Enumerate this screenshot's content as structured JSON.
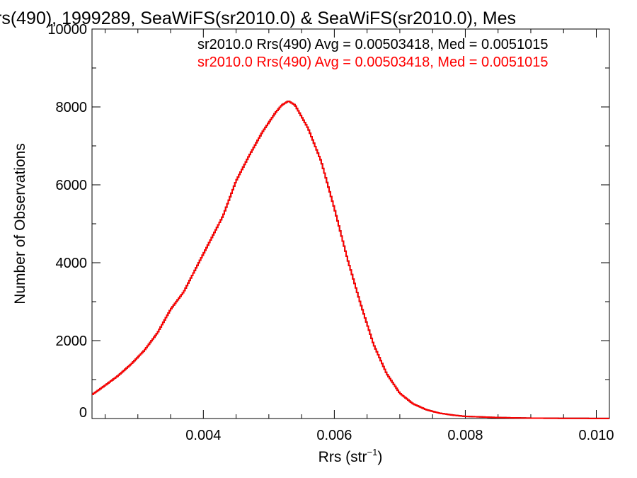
{
  "chart_data": {
    "type": "line",
    "title": "rs(490), 1999289, SeaWiFS(sr2010.0) & SeaWiFS(sr2010.0), Mes",
    "xlabel": "Rrs (str",
    "xlabel_sup": "−1",
    "xlabel_close": ")",
    "ylabel": "Number of Observations",
    "xlim": [
      0.0023,
      0.0102
    ],
    "ylim": [
      0,
      10000
    ],
    "x_ticks": [
      {
        "value": 0.004,
        "label": "0.004"
      },
      {
        "value": 0.006,
        "label": "0.006"
      },
      {
        "value": 0.008,
        "label": "0.008"
      },
      {
        "value": 0.01,
        "label": "0.010"
      }
    ],
    "y_ticks": [
      {
        "value": 0,
        "label": "0"
      },
      {
        "value": 2000,
        "label": "2000"
      },
      {
        "value": 4000,
        "label": "4000"
      },
      {
        "value": 6000,
        "label": "6000"
      },
      {
        "value": 8000,
        "label": "8000"
      },
      {
        "value": 10000,
        "label": "10000"
      }
    ],
    "grid": false,
    "legend_position": "top-right",
    "series": [
      {
        "color": "#000000",
        "legend": "sr2010.0 Rrs(490) Avg = 0.00503418, Med = 0.0051015",
        "points": [
          [
            0.0023,
            610
          ],
          [
            0.0025,
            850
          ],
          [
            0.0027,
            1100
          ],
          [
            0.0029,
            1400
          ],
          [
            0.0031,
            1750
          ],
          [
            0.0033,
            2200
          ],
          [
            0.0035,
            2800
          ],
          [
            0.0037,
            3250
          ],
          [
            0.0039,
            3900
          ],
          [
            0.0041,
            4550
          ],
          [
            0.0043,
            5200
          ],
          [
            0.0045,
            6100
          ],
          [
            0.0047,
            6750
          ],
          [
            0.0049,
            7350
          ],
          [
            0.0051,
            7850
          ],
          [
            0.0052,
            8050
          ],
          [
            0.0053,
            8150
          ],
          [
            0.0054,
            8050
          ],
          [
            0.0056,
            7450
          ],
          [
            0.0058,
            6600
          ],
          [
            0.006,
            5400
          ],
          [
            0.0062,
            4100
          ],
          [
            0.0064,
            2950
          ],
          [
            0.0066,
            1900
          ],
          [
            0.0068,
            1150
          ],
          [
            0.007,
            650
          ],
          [
            0.0072,
            380
          ],
          [
            0.0074,
            230
          ],
          [
            0.0076,
            140
          ],
          [
            0.0078,
            90
          ],
          [
            0.008,
            55
          ],
          [
            0.0085,
            25
          ],
          [
            0.009,
            10
          ],
          [
            0.0095,
            5
          ],
          [
            0.0102,
            2
          ]
        ]
      },
      {
        "color": "#ff0000",
        "legend": "sr2010.0 Rrs(490) Avg = 0.00503418, Med = 0.0051015",
        "points": [
          [
            0.0023,
            610
          ],
          [
            0.0025,
            850
          ],
          [
            0.0027,
            1100
          ],
          [
            0.0029,
            1400
          ],
          [
            0.0031,
            1750
          ],
          [
            0.0033,
            2200
          ],
          [
            0.0035,
            2800
          ],
          [
            0.0037,
            3250
          ],
          [
            0.0039,
            3900
          ],
          [
            0.0041,
            4550
          ],
          [
            0.0043,
            5200
          ],
          [
            0.0045,
            6100
          ],
          [
            0.0047,
            6750
          ],
          [
            0.0049,
            7350
          ],
          [
            0.0051,
            7850
          ],
          [
            0.0052,
            8050
          ],
          [
            0.0053,
            8150
          ],
          [
            0.0054,
            8050
          ],
          [
            0.0056,
            7450
          ],
          [
            0.0058,
            6600
          ],
          [
            0.006,
            5400
          ],
          [
            0.0062,
            4100
          ],
          [
            0.0064,
            2950
          ],
          [
            0.0066,
            1900
          ],
          [
            0.0068,
            1150
          ],
          [
            0.007,
            650
          ],
          [
            0.0072,
            380
          ],
          [
            0.0074,
            230
          ],
          [
            0.0076,
            140
          ],
          [
            0.0078,
            90
          ],
          [
            0.008,
            55
          ],
          [
            0.0085,
            25
          ],
          [
            0.009,
            10
          ],
          [
            0.0095,
            5
          ],
          [
            0.0102,
            2
          ]
        ]
      }
    ]
  }
}
